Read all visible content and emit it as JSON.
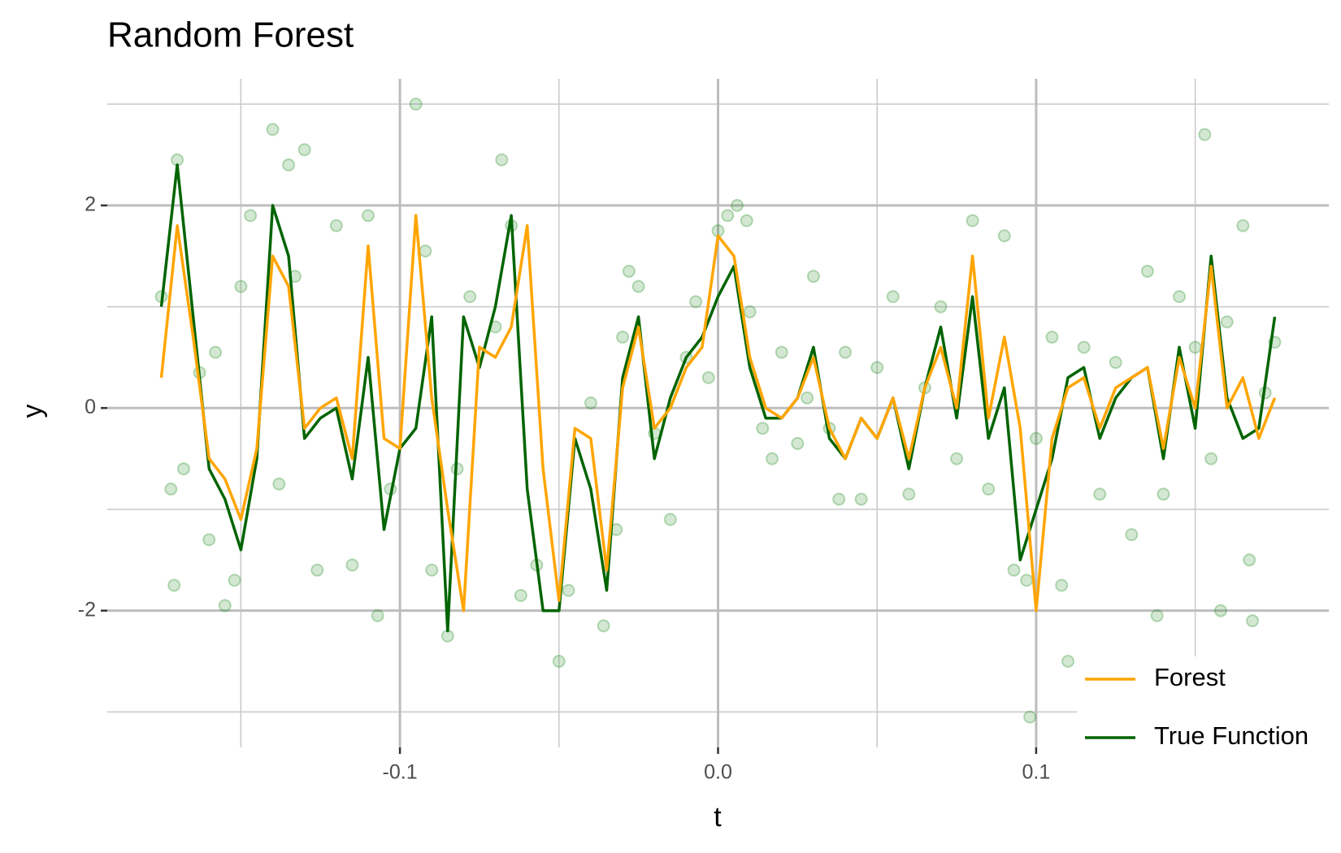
{
  "chart_data": {
    "type": "line",
    "title": "Random Forest",
    "x_label": "t",
    "y_label": "y",
    "xlim": [
      -0.192,
      0.192
    ],
    "ylim": [
      -3.35,
      3.25
    ],
    "xticks": [
      -0.1,
      {
        "value": 0,
        "label": "0.0"
      },
      0.1
    ],
    "yticks": [
      -2,
      0,
      2
    ],
    "x_minor_ticks": [
      -0.15,
      -0.05,
      0.05,
      0.15
    ],
    "y_minor_ticks": [
      -3,
      -1,
      1,
      3
    ],
    "grid": true,
    "legend": "bottom-right",
    "x": [
      -0.175,
      -0.17,
      -0.165,
      -0.16,
      -0.155,
      -0.15,
      -0.145,
      -0.14,
      -0.135,
      -0.13,
      -0.125,
      -0.12,
      -0.115,
      -0.11,
      -0.105,
      -0.1,
      -0.095,
      -0.09,
      -0.085,
      -0.08,
      -0.075,
      -0.07,
      -0.065,
      -0.06,
      -0.055,
      -0.05,
      -0.045,
      -0.04,
      -0.035,
      -0.03,
      -0.025,
      -0.02,
      -0.015,
      -0.01,
      -0.005,
      0,
      0.005,
      0.01,
      0.015,
      0.02,
      0.025,
      0.03,
      0.035,
      0.04,
      0.045,
      0.05,
      0.055,
      0.06,
      0.065,
      0.07,
      0.075,
      0.08,
      0.085,
      0.09,
      0.095,
      0.1,
      0.105,
      0.11,
      0.115,
      0.12,
      0.125,
      0.13,
      0.135,
      0.14,
      0.145,
      0.15,
      0.155,
      0.16,
      0.165,
      0.17,
      0.175
    ],
    "series": [
      {
        "name": "Forest",
        "color": "#FFA500",
        "values": [
          0.3,
          1.8,
          0.7,
          -0.5,
          -0.7,
          -1.1,
          -0.4,
          1.5,
          1.2,
          -0.2,
          0.0,
          0.1,
          -0.5,
          1.6,
          -0.3,
          -0.4,
          1.9,
          0.1,
          -1.0,
          -2.0,
          0.6,
          0.5,
          0.8,
          1.8,
          -0.6,
          -1.9,
          -0.2,
          -0.3,
          -1.6,
          0.2,
          0.8,
          -0.2,
          0.0,
          0.4,
          0.6,
          1.7,
          1.5,
          0.5,
          0.0,
          -0.1,
          0.1,
          0.5,
          -0.2,
          -0.5,
          -0.1,
          -0.3,
          0.1,
          -0.5,
          0.2,
          0.6,
          0.0,
          1.5,
          -0.1,
          0.7,
          -0.2,
          -2.0,
          -0.3,
          0.2,
          0.3,
          -0.2,
          0.2,
          0.3,
          0.4,
          -0.4,
          0.5,
          0.0,
          1.4,
          0.0,
          0.3,
          -0.3,
          0.1
        ]
      },
      {
        "name": "True Function",
        "color": "#006400",
        "values": [
          1.0,
          2.4,
          0.9,
          -0.6,
          -0.9,
          -1.4,
          -0.5,
          2.0,
          1.5,
          -0.3,
          -0.1,
          0.0,
          -0.7,
          0.5,
          -1.2,
          -0.4,
          -0.2,
          0.9,
          -2.2,
          0.9,
          0.4,
          1.0,
          1.9,
          -0.8,
          -2.0,
          -2.0,
          -0.3,
          -0.8,
          -1.8,
          0.3,
          0.9,
          -0.5,
          0.1,
          0.5,
          0.7,
          1.1,
          1.4,
          0.4,
          -0.1,
          -0.1,
          0.1,
          0.6,
          -0.3,
          -0.5,
          -0.1,
          -0.3,
          0.1,
          -0.6,
          0.2,
          0.8,
          -0.1,
          1.1,
          -0.3,
          0.2,
          -1.5,
          -1.0,
          -0.5,
          0.3,
          0.4,
          -0.3,
          0.1,
          0.3,
          0.4,
          -0.5,
          0.6,
          -0.2,
          1.5,
          0.1,
          -0.3,
          -0.2,
          0.9
        ]
      }
    ],
    "observations": {
      "color": "#228B22",
      "x": [
        -0.175,
        -0.172,
        -0.171,
        -0.17,
        -0.168,
        -0.163,
        -0.16,
        -0.158,
        -0.155,
        -0.152,
        -0.15,
        -0.147,
        -0.14,
        -0.138,
        -0.135,
        -0.133,
        -0.13,
        -0.126,
        -0.12,
        -0.115,
        -0.11,
        -0.107,
        -0.103,
        -0.095,
        -0.092,
        -0.09,
        -0.085,
        -0.082,
        -0.078,
        -0.07,
        -0.068,
        -0.065,
        -0.062,
        -0.057,
        -0.05,
        -0.047,
        -0.04,
        -0.036,
        -0.032,
        -0.03,
        -0.028,
        -0.025,
        -0.02,
        -0.015,
        -0.01,
        -0.007,
        -0.003,
        0,
        0.003,
        0.006,
        0.009,
        0.01,
        0.014,
        0.017,
        0.02,
        0.025,
        0.028,
        0.03,
        0.035,
        0.038,
        0.04,
        0.045,
        0.05,
        0.055,
        0.06,
        0.065,
        0.07,
        0.075,
        0.08,
        0.085,
        0.09,
        0.093,
        0.097,
        0.098,
        0.1,
        0.105,
        0.108,
        0.11,
        0.115,
        0.12,
        0.125,
        0.13,
        0.135,
        0.138,
        0.14,
        0.145,
        0.15,
        0.153,
        0.155,
        0.158,
        0.16,
        0.165,
        0.167,
        0.168,
        0.172,
        0.175
      ],
      "y": [
        1.1,
        -0.8,
        -1.75,
        2.45,
        -0.6,
        0.35,
        -1.3,
        0.55,
        -1.95,
        -1.7,
        1.2,
        1.9,
        2.75,
        -0.75,
        2.4,
        1.3,
        2.55,
        -1.6,
        1.8,
        -1.55,
        1.9,
        -2.05,
        -0.8,
        3.0,
        1.55,
        -1.6,
        -2.25,
        -0.6,
        1.1,
        0.8,
        2.45,
        1.8,
        -1.85,
        -1.55,
        -2.5,
        -1.8,
        0.05,
        -2.15,
        -1.2,
        0.7,
        1.35,
        1.2,
        -0.25,
        -1.1,
        0.5,
        1.05,
        0.3,
        1.75,
        1.9,
        2.0,
        1.85,
        0.95,
        -0.2,
        -0.5,
        0.55,
        -0.35,
        0.1,
        1.3,
        -0.2,
        -0.9,
        0.55,
        -0.9,
        0.4,
        1.1,
        -0.85,
        0.2,
        1.0,
        -0.5,
        1.85,
        -0.8,
        1.7,
        -1.6,
        -1.7,
        -3.05,
        -0.3,
        0.7,
        -1.75,
        -2.5,
        0.6,
        -0.85,
        0.45,
        -1.25,
        1.35,
        -2.05,
        -0.85,
        1.1,
        0.6,
        2.7,
        -0.5,
        -2.0,
        0.85,
        1.8,
        -1.5,
        -2.1,
        0.15,
        0.65
      ]
    }
  }
}
